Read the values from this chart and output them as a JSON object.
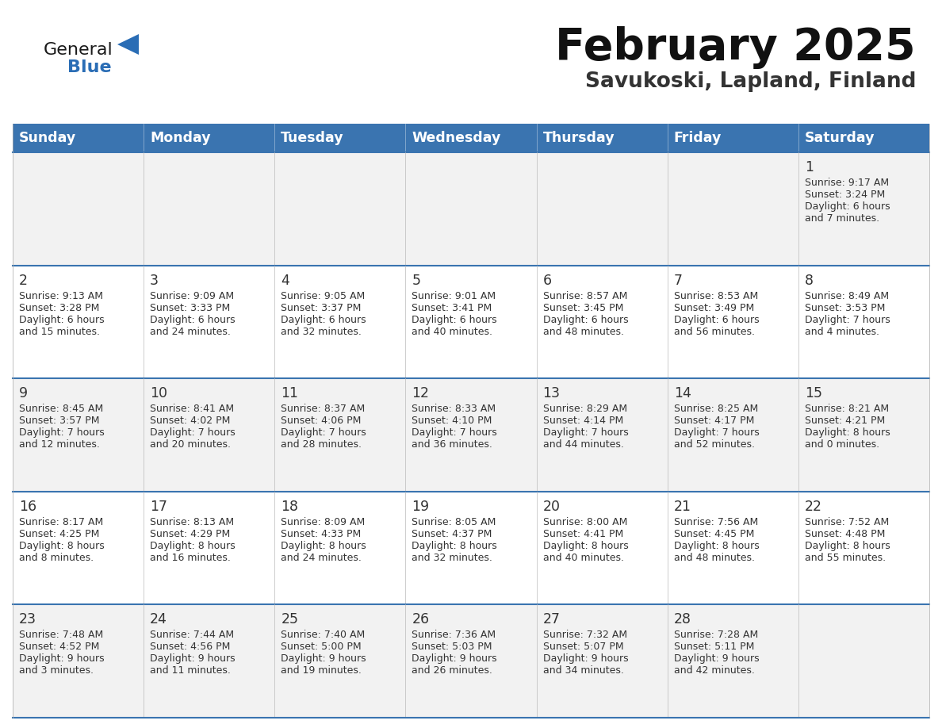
{
  "title": "February 2025",
  "subtitle": "Savukoski, Lapland, Finland",
  "days_of_week": [
    "Sunday",
    "Monday",
    "Tuesday",
    "Wednesday",
    "Thursday",
    "Friday",
    "Saturday"
  ],
  "header_bg": "#3a74b0",
  "header_text": "#ffffff",
  "cell_bg_week1": "#ebebeb",
  "cell_bg_even": "#f2f2f2",
  "cell_bg_odd": "#ffffff",
  "row_divider_color": "#3a74b0",
  "col_divider_color": "#cccccc",
  "text_color": "#333333",
  "day_num_color": "#333333",
  "logo_general_color": "#1a1a1a",
  "logo_blue_color": "#2a6db5",
  "calendar_data": [
    [
      null,
      null,
      null,
      null,
      null,
      null,
      {
        "day": 1,
        "sunrise": "9:17 AM",
        "sunset": "3:24 PM",
        "daylight": "6 hours\nand 7 minutes."
      }
    ],
    [
      {
        "day": 2,
        "sunrise": "9:13 AM",
        "sunset": "3:28 PM",
        "daylight": "6 hours\nand 15 minutes."
      },
      {
        "day": 3,
        "sunrise": "9:09 AM",
        "sunset": "3:33 PM",
        "daylight": "6 hours\nand 24 minutes."
      },
      {
        "day": 4,
        "sunrise": "9:05 AM",
        "sunset": "3:37 PM",
        "daylight": "6 hours\nand 32 minutes."
      },
      {
        "day": 5,
        "sunrise": "9:01 AM",
        "sunset": "3:41 PM",
        "daylight": "6 hours\nand 40 minutes."
      },
      {
        "day": 6,
        "sunrise": "8:57 AM",
        "sunset": "3:45 PM",
        "daylight": "6 hours\nand 48 minutes."
      },
      {
        "day": 7,
        "sunrise": "8:53 AM",
        "sunset": "3:49 PM",
        "daylight": "6 hours\nand 56 minutes."
      },
      {
        "day": 8,
        "sunrise": "8:49 AM",
        "sunset": "3:53 PM",
        "daylight": "7 hours\nand 4 minutes."
      }
    ],
    [
      {
        "day": 9,
        "sunrise": "8:45 AM",
        "sunset": "3:57 PM",
        "daylight": "7 hours\nand 12 minutes."
      },
      {
        "day": 10,
        "sunrise": "8:41 AM",
        "sunset": "4:02 PM",
        "daylight": "7 hours\nand 20 minutes."
      },
      {
        "day": 11,
        "sunrise": "8:37 AM",
        "sunset": "4:06 PM",
        "daylight": "7 hours\nand 28 minutes."
      },
      {
        "day": 12,
        "sunrise": "8:33 AM",
        "sunset": "4:10 PM",
        "daylight": "7 hours\nand 36 minutes."
      },
      {
        "day": 13,
        "sunrise": "8:29 AM",
        "sunset": "4:14 PM",
        "daylight": "7 hours\nand 44 minutes."
      },
      {
        "day": 14,
        "sunrise": "8:25 AM",
        "sunset": "4:17 PM",
        "daylight": "7 hours\nand 52 minutes."
      },
      {
        "day": 15,
        "sunrise": "8:21 AM",
        "sunset": "4:21 PM",
        "daylight": "8 hours\nand 0 minutes."
      }
    ],
    [
      {
        "day": 16,
        "sunrise": "8:17 AM",
        "sunset": "4:25 PM",
        "daylight": "8 hours\nand 8 minutes."
      },
      {
        "day": 17,
        "sunrise": "8:13 AM",
        "sunset": "4:29 PM",
        "daylight": "8 hours\nand 16 minutes."
      },
      {
        "day": 18,
        "sunrise": "8:09 AM",
        "sunset": "4:33 PM",
        "daylight": "8 hours\nand 24 minutes."
      },
      {
        "day": 19,
        "sunrise": "8:05 AM",
        "sunset": "4:37 PM",
        "daylight": "8 hours\nand 32 minutes."
      },
      {
        "day": 20,
        "sunrise": "8:00 AM",
        "sunset": "4:41 PM",
        "daylight": "8 hours\nand 40 minutes."
      },
      {
        "day": 21,
        "sunrise": "7:56 AM",
        "sunset": "4:45 PM",
        "daylight": "8 hours\nand 48 minutes."
      },
      {
        "day": 22,
        "sunrise": "7:52 AM",
        "sunset": "4:48 PM",
        "daylight": "8 hours\nand 55 minutes."
      }
    ],
    [
      {
        "day": 23,
        "sunrise": "7:48 AM",
        "sunset": "4:52 PM",
        "daylight": "9 hours\nand 3 minutes."
      },
      {
        "day": 24,
        "sunrise": "7:44 AM",
        "sunset": "4:56 PM",
        "daylight": "9 hours\nand 11 minutes."
      },
      {
        "day": 25,
        "sunrise": "7:40 AM",
        "sunset": "5:00 PM",
        "daylight": "9 hours\nand 19 minutes."
      },
      {
        "day": 26,
        "sunrise": "7:36 AM",
        "sunset": "5:03 PM",
        "daylight": "9 hours\nand 26 minutes."
      },
      {
        "day": 27,
        "sunrise": "7:32 AM",
        "sunset": "5:07 PM",
        "daylight": "9 hours\nand 34 minutes."
      },
      {
        "day": 28,
        "sunrise": "7:28 AM",
        "sunset": "5:11 PM",
        "daylight": "9 hours\nand 42 minutes."
      },
      null
    ]
  ]
}
